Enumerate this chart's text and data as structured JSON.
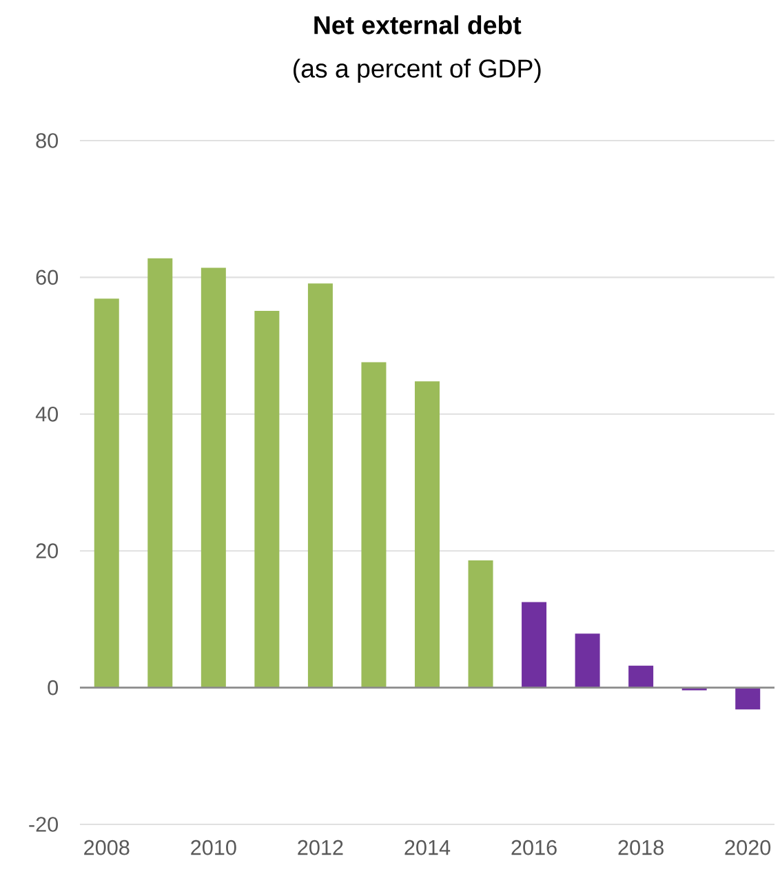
{
  "chart_data": {
    "type": "bar",
    "title": "Net external debt",
    "subtitle": "(as a percent of GDP)",
    "categories": [
      "2008",
      null,
      "2010",
      null,
      "2012",
      null,
      "2014",
      null,
      "2016",
      null,
      "2018",
      null,
      "2020"
    ],
    "values": [
      56.9,
      62.8,
      61.4,
      55.1,
      59.1,
      47.6,
      44.8,
      18.6,
      12.5,
      7.9,
      3.2,
      -0.4,
      -3.2
    ],
    "colors": [
      "#9bbb59",
      "#9bbb59",
      "#9bbb59",
      "#9bbb59",
      "#9bbb59",
      "#9bbb59",
      "#9bbb59",
      "#9bbb59",
      "#7030a0",
      "#7030a0",
      "#7030a0",
      "#7030a0",
      "#7030a0"
    ],
    "ylim": [
      -20,
      80
    ],
    "yticks": [
      -20,
      0,
      20,
      40,
      60,
      80
    ],
    "grid": "y"
  }
}
